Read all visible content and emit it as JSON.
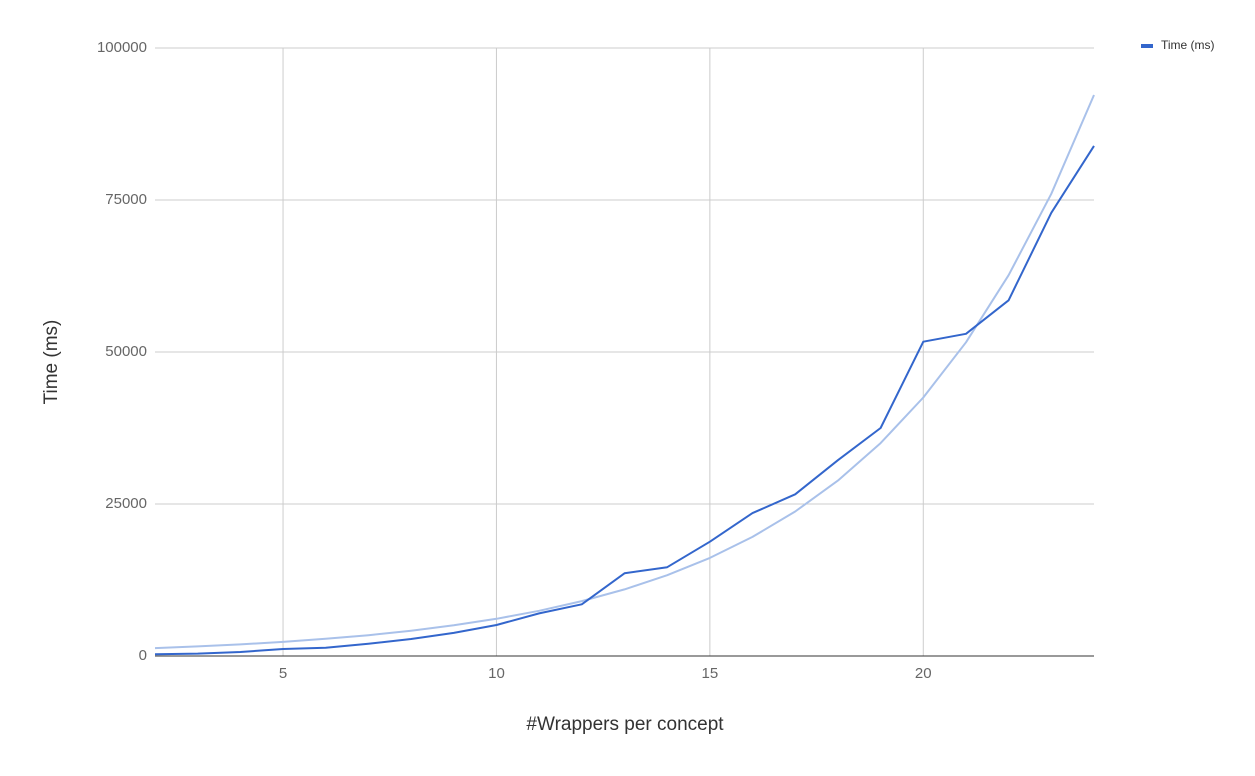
{
  "chart_data": {
    "type": "line",
    "x_label": "#Wrappers per concept",
    "y_label": "Time (ms)",
    "x": [
      2,
      3,
      4,
      5,
      6,
      7,
      8,
      9,
      10,
      11,
      12,
      13,
      14,
      15,
      16,
      17,
      18,
      19,
      20,
      21,
      22,
      23,
      24
    ],
    "series": [
      {
        "name": "Time (ms)",
        "color": "#3366cc",
        "values": [
          300,
          400,
          650,
          1150,
          1350,
          2000,
          2800,
          3800,
          5100,
          7000,
          8500,
          13600,
          14600,
          18800,
          23500,
          26600,
          32200,
          37500,
          51700,
          53000,
          58500,
          72900,
          83900
        ]
      }
    ],
    "trendline": {
      "type": "exponential",
      "color": "#a9c1ea",
      "values": [
        1300,
        1578,
        1915,
        2325,
        2822,
        3425,
        4157,
        5046,
        6125,
        7434,
        9024,
        10953,
        13294,
        16136,
        19586,
        23773,
        28855,
        35024,
        42511,
        51599,
        62630,
        76019,
        92270
      ]
    },
    "xlim": [
      2,
      24
    ],
    "xticks": [
      5,
      10,
      15,
      20
    ],
    "ylim": [
      0,
      100000
    ],
    "yticks": [
      0,
      25000,
      50000,
      75000,
      100000
    ],
    "grid": true,
    "legend": "top-right"
  }
}
